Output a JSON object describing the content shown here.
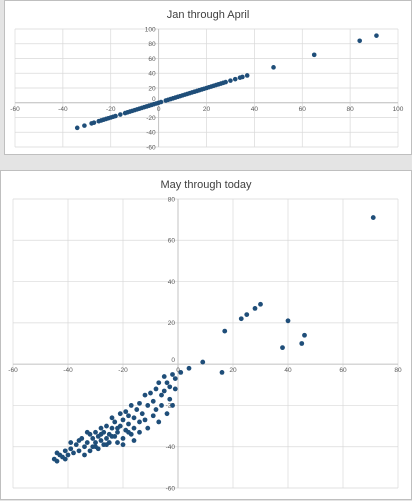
{
  "colors": {
    "marker": "#1f4e79",
    "grid": "#d9d9d9",
    "axis": "#bfbfbf",
    "text": "#595959"
  },
  "chart_data": [
    {
      "type": "scatter",
      "title": "Jan through April",
      "xlabel": "",
      "ylabel": "",
      "xlim": [
        -60,
        100
      ],
      "ylim": [
        -60,
        100
      ],
      "xticks": [
        -60,
        -40,
        -20,
        0,
        20,
        40,
        60,
        80,
        100
      ],
      "yticks": [
        -60,
        -40,
        -20,
        0,
        20,
        40,
        60,
        80,
        100
      ],
      "grid": true,
      "legend": "none",
      "points": [
        [
          -34,
          -34
        ],
        [
          -31,
          -31
        ],
        [
          -28,
          -28
        ],
        [
          -27,
          -27
        ],
        [
          -25,
          -25
        ],
        [
          -24,
          -24
        ],
        [
          -23,
          -23
        ],
        [
          -22,
          -22
        ],
        [
          -21,
          -21
        ],
        [
          -20,
          -20
        ],
        [
          -19,
          -19
        ],
        [
          -18,
          -18
        ],
        [
          -16,
          -16
        ],
        [
          -14,
          -14
        ],
        [
          -13,
          -13
        ],
        [
          -12,
          -12
        ],
        [
          -11,
          -11
        ],
        [
          -10,
          -10
        ],
        [
          -9,
          -9
        ],
        [
          -8,
          -8
        ],
        [
          -7,
          -7
        ],
        [
          -6,
          -6
        ],
        [
          -5,
          -5
        ],
        [
          -4,
          -4
        ],
        [
          -3,
          -3
        ],
        [
          -2,
          -2
        ],
        [
          -1,
          -1
        ],
        [
          0,
          0
        ],
        [
          1,
          1
        ],
        [
          3,
          3
        ],
        [
          4,
          4
        ],
        [
          5,
          5
        ],
        [
          6,
          6
        ],
        [
          7,
          7
        ],
        [
          8,
          8
        ],
        [
          9,
          9
        ],
        [
          10,
          10
        ],
        [
          11,
          11
        ],
        [
          12,
          12
        ],
        [
          13,
          13
        ],
        [
          14,
          14
        ],
        [
          15,
          15
        ],
        [
          16,
          16
        ],
        [
          17,
          17
        ],
        [
          18,
          18
        ],
        [
          19,
          19
        ],
        [
          20,
          20
        ],
        [
          21,
          21
        ],
        [
          22,
          22
        ],
        [
          23,
          23
        ],
        [
          24,
          24
        ],
        [
          25,
          25
        ],
        [
          26,
          26
        ],
        [
          27,
          27
        ],
        [
          28,
          28
        ],
        [
          30,
          30
        ],
        [
          32,
          32
        ],
        [
          34,
          34
        ],
        [
          35,
          35
        ],
        [
          37,
          37
        ],
        [
          48,
          48
        ],
        [
          65,
          65
        ],
        [
          84,
          84
        ],
        [
          91,
          91
        ]
      ]
    },
    {
      "type": "scatter",
      "title": "May through today",
      "xlabel": "",
      "ylabel": "",
      "xlim": [
        -60,
        80
      ],
      "ylim": [
        -60,
        80
      ],
      "xticks": [
        -60,
        -40,
        -20,
        0,
        20,
        40,
        60,
        80
      ],
      "yticks": [
        -60,
        -40,
        -20,
        0,
        20,
        40,
        60,
        80
      ],
      "grid": true,
      "legend": "none",
      "points": [
        [
          71,
          71
        ],
        [
          40,
          21
        ],
        [
          46,
          14
        ],
        [
          38,
          8
        ],
        [
          45,
          10
        ],
        [
          30,
          29
        ],
        [
          28,
          27
        ],
        [
          25,
          24
        ],
        [
          23,
          22
        ],
        [
          17,
          16
        ],
        [
          16,
          -4
        ],
        [
          9,
          1
        ],
        [
          4,
          -2
        ],
        [
          1,
          -4
        ],
        [
          -1,
          -7
        ],
        [
          -2,
          -5
        ],
        [
          -3,
          -11
        ],
        [
          -4,
          -9
        ],
        [
          -5,
          -6
        ],
        [
          -5,
          -13
        ],
        [
          -6,
          -15
        ],
        [
          -7,
          -9
        ],
        [
          -8,
          -12
        ],
        [
          -9,
          -18
        ],
        [
          -10,
          -14
        ],
        [
          -11,
          -20
        ],
        [
          -12,
          -15
        ],
        [
          -13,
          -24
        ],
        [
          -14,
          -19
        ],
        [
          -14,
          -28
        ],
        [
          -15,
          -22
        ],
        [
          -16,
          -26
        ],
        [
          -16,
          -31
        ],
        [
          -17,
          -20
        ],
        [
          -17,
          -34
        ],
        [
          -18,
          -25
        ],
        [
          -18,
          -29
        ],
        [
          -19,
          -23
        ],
        [
          -19,
          -32
        ],
        [
          -20,
          -27
        ],
        [
          -20,
          -36
        ],
        [
          -21,
          -30
        ],
        [
          -21,
          -24
        ],
        [
          -22,
          -33
        ],
        [
          -22,
          -38
        ],
        [
          -23,
          -28
        ],
        [
          -23,
          -35
        ],
        [
          -24,
          -31
        ],
        [
          -24,
          -26
        ],
        [
          -25,
          -34
        ],
        [
          -25,
          -38
        ],
        [
          -26,
          -30
        ],
        [
          -26,
          -36
        ],
        [
          -27,
          -33
        ],
        [
          -27,
          -39
        ],
        [
          -28,
          -31
        ],
        [
          -28,
          -37
        ],
        [
          -29,
          -35
        ],
        [
          -29,
          -41
        ],
        [
          -30,
          -33
        ],
        [
          -30,
          -38
        ],
        [
          -31,
          -36
        ],
        [
          -31,
          -40
        ],
        [
          -32,
          -34
        ],
        [
          -32,
          -42
        ],
        [
          -33,
          -38
        ],
        [
          -34,
          -40
        ],
        [
          -35,
          -36
        ],
        [
          -36,
          -42
        ],
        [
          -37,
          -39
        ],
        [
          -38,
          -43
        ],
        [
          -39,
          -41
        ],
        [
          -40,
          -44
        ],
        [
          -41,
          -42
        ],
        [
          -42,
          -45
        ],
        [
          -43,
          -44
        ],
        [
          -44,
          -47
        ],
        [
          -45,
          -46
        ],
        [
          -44,
          -43
        ],
        [
          -41,
          -46
        ],
        [
          -39,
          -38
        ],
        [
          -36,
          -37
        ],
        [
          -34,
          -44
        ],
        [
          -33,
          -33
        ],
        [
          -30,
          -40
        ],
        [
          -28,
          -34
        ],
        [
          -26,
          -39
        ],
        [
          -24,
          -35
        ],
        [
          -22,
          -31
        ],
        [
          -20,
          -39
        ],
        [
          -18,
          -33
        ],
        [
          -16,
          -37
        ],
        [
          -14,
          -33
        ],
        [
          -12,
          -27
        ],
        [
          -11,
          -31
        ],
        [
          -9,
          -25
        ],
        [
          -8,
          -22
        ],
        [
          -7,
          -28
        ],
        [
          -6,
          -20
        ],
        [
          -4,
          -24
        ],
        [
          -3,
          -17
        ],
        [
          -1,
          -12
        ],
        [
          -2,
          -20
        ]
      ]
    }
  ]
}
